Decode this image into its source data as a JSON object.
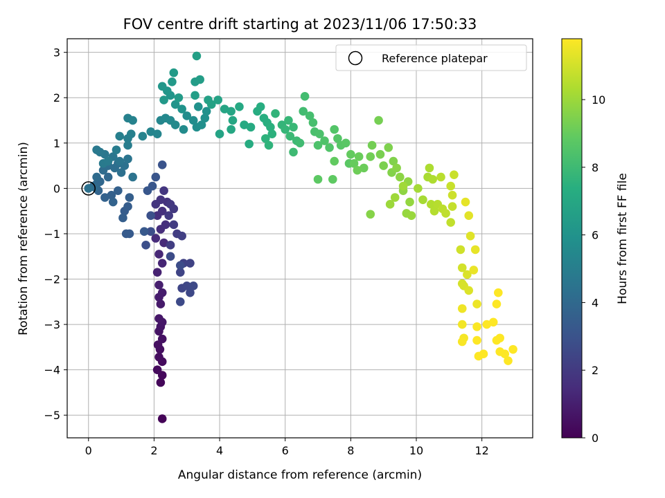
{
  "chart_data": {
    "type": "scatter",
    "title": "FOV centre drift starting at 2023/11/06 17:50:33",
    "xlabel": "Angular distance from reference (arcmin)",
    "ylabel": "Rotation from reference (arcmin)",
    "xlim": [
      -0.65,
      13.55
    ],
    "ylim": [
      -5.5,
      3.3
    ],
    "xticks": [
      0,
      2,
      4,
      6,
      8,
      10,
      12
    ],
    "yticks": [
      3,
      2,
      1,
      0,
      -1,
      -2,
      -3,
      -4,
      -5
    ],
    "xtick_labels": [
      "0",
      "2",
      "4",
      "6",
      "8",
      "10",
      "12"
    ],
    "ytick_labels": [
      "3",
      "2",
      "1",
      "0",
      "−1",
      "−2",
      "−3",
      "−4",
      "−5"
    ],
    "grid": true,
    "legend": {
      "position": "top-right",
      "entries": [
        "Reference platepar"
      ]
    },
    "reference_point": {
      "x": 0,
      "y": 0
    },
    "colorbar": {
      "label": "Hours from first FF file",
      "colormap": "viridis",
      "range": [
        0,
        11.8
      ],
      "ticks": [
        0,
        2,
        4,
        6,
        8,
        10
      ],
      "tick_labels": [
        "0",
        "2",
        "4",
        "6",
        "8",
        "10"
      ]
    },
    "series": [
      {
        "points": [
          [
            2.25,
            -5.08,
            0.1
          ],
          [
            2.2,
            -4.28,
            0.2
          ],
          [
            2.25,
            -4.12,
            0.25
          ],
          [
            2.1,
            -4.0,
            0.3
          ],
          [
            2.25,
            -3.82,
            0.35
          ],
          [
            2.15,
            -3.72,
            0.4
          ],
          [
            2.18,
            -3.55,
            0.45
          ],
          [
            2.12,
            -3.45,
            0.5
          ],
          [
            2.25,
            -3.32,
            0.55
          ],
          [
            2.15,
            -3.15,
            0.6
          ],
          [
            2.2,
            -3.05,
            0.65
          ],
          [
            2.25,
            -2.95,
            0.7
          ],
          [
            2.15,
            -2.87,
            0.75
          ],
          [
            2.2,
            -2.55,
            0.85
          ],
          [
            2.15,
            -2.4,
            0.9
          ],
          [
            2.25,
            -2.3,
            0.95
          ],
          [
            2.15,
            -2.13,
            1.0
          ],
          [
            2.1,
            -1.85,
            1.1
          ],
          [
            2.25,
            -1.65,
            1.2
          ],
          [
            2.15,
            -1.45,
            1.3
          ],
          [
            2.3,
            -1.2,
            1.4
          ],
          [
            2.05,
            -1.1,
            1.45
          ],
          [
            2.2,
            -0.9,
            1.5
          ],
          [
            2.35,
            -0.8,
            1.55
          ],
          [
            2.1,
            -0.6,
            1.6
          ],
          [
            2.25,
            -0.5,
            1.65
          ],
          [
            2.4,
            -0.3,
            1.7
          ],
          [
            2.2,
            -0.25,
            1.75
          ],
          [
            2.05,
            -0.35,
            1.8
          ],
          [
            2.3,
            -0.05,
            1.85
          ],
          [
            2.5,
            -0.35,
            1.9
          ],
          [
            2.6,
            -0.45,
            1.95
          ],
          [
            2.45,
            -0.6,
            2.0
          ],
          [
            2.6,
            -0.8,
            2.05
          ],
          [
            2.7,
            -1.0,
            2.1
          ],
          [
            2.5,
            -1.25,
            2.15
          ],
          [
            2.85,
            -1.05,
            2.2
          ],
          [
            2.9,
            -1.65,
            2.3
          ],
          [
            3.1,
            -1.65,
            2.35
          ],
          [
            2.8,
            -1.85,
            2.4
          ],
          [
            2.85,
            -2.2,
            2.45
          ],
          [
            3.0,
            -2.15,
            2.5
          ],
          [
            3.1,
            -2.3,
            2.55
          ],
          [
            3.2,
            -2.15,
            2.6
          ],
          [
            2.8,
            -2.5,
            2.65
          ],
          [
            2.5,
            -1.5,
            2.7
          ],
          [
            2.8,
            -1.7,
            2.75
          ],
          [
            1.9,
            -0.95,
            2.8
          ],
          [
            1.75,
            -1.25,
            2.85
          ],
          [
            1.9,
            -0.6,
            2.9
          ],
          [
            2.25,
            0.52,
            3.0
          ],
          [
            2.05,
            0.25,
            3.1
          ],
          [
            1.95,
            0.05,
            3.15
          ],
          [
            1.8,
            -0.05,
            3.2
          ],
          [
            1.7,
            -0.95,
            3.25
          ],
          [
            1.25,
            -1.0,
            3.3
          ],
          [
            1.15,
            -1.0,
            3.35
          ],
          [
            1.1,
            -0.5,
            3.4
          ],
          [
            1.2,
            -0.4,
            3.45
          ],
          [
            1.05,
            -0.65,
            3.5
          ],
          [
            1.25,
            -0.2,
            3.55
          ],
          [
            0.9,
            -0.05,
            3.6
          ],
          [
            0.7,
            -0.15,
            3.65
          ],
          [
            0.5,
            -0.2,
            3.7
          ],
          [
            0.75,
            -0.3,
            3.75
          ],
          [
            0.3,
            -0.05,
            3.8
          ],
          [
            0.25,
            0.1,
            3.85
          ],
          [
            0.35,
            0.15,
            3.9
          ],
          [
            0.6,
            0.25,
            3.95
          ],
          [
            0.2,
            0.02,
            4.0
          ],
          [
            0.15,
            0.05,
            4.05
          ],
          [
            0.25,
            0.25,
            4.1
          ],
          [
            0.45,
            0.4,
            4.15
          ],
          [
            0.6,
            0.5,
            4.2
          ],
          [
            0.8,
            0.45,
            4.25
          ],
          [
            0.9,
            0.55,
            4.3
          ],
          [
            1.0,
            0.35,
            4.35
          ],
          [
            1.1,
            0.5,
            4.4
          ],
          [
            1.35,
            0.25,
            4.45
          ],
          [
            1.2,
            0.65,
            4.5
          ],
          [
            0.95,
            0.6,
            4.55
          ],
          [
            0.75,
            0.7,
            4.6
          ],
          [
            0.5,
            0.75,
            4.65
          ],
          [
            0.35,
            0.8,
            4.7
          ],
          [
            0.25,
            0.85,
            4.75
          ],
          [
            0.45,
            0.55,
            4.8
          ],
          [
            0.6,
            0.6,
            4.85
          ],
          [
            0.85,
            0.85,
            4.9
          ],
          [
            1.2,
            0.95,
            4.95
          ],
          [
            1.2,
            1.1,
            5.0
          ],
          [
            0.95,
            1.15,
            5.05
          ],
          [
            1.3,
            1.2,
            5.1
          ],
          [
            1.2,
            1.55,
            5.15
          ],
          [
            1.35,
            1.5,
            5.2
          ],
          [
            1.65,
            1.15,
            5.25
          ],
          [
            1.9,
            1.25,
            5.3
          ],
          [
            2.1,
            1.2,
            5.35
          ],
          [
            2.2,
            1.5,
            5.4
          ],
          [
            2.35,
            1.55,
            5.45
          ],
          [
            2.5,
            1.5,
            5.5
          ],
          [
            2.65,
            1.4,
            5.55
          ],
          [
            2.9,
            1.3,
            5.6
          ],
          [
            3.0,
            1.6,
            5.65
          ],
          [
            3.2,
            1.5,
            5.7
          ],
          [
            3.3,
            1.35,
            5.75
          ],
          [
            3.45,
            1.4,
            5.8
          ],
          [
            3.55,
            1.55,
            5.85
          ],
          [
            3.6,
            1.7,
            5.9
          ],
          [
            3.35,
            1.8,
            5.95
          ],
          [
            2.85,
            1.75,
            6.0
          ],
          [
            2.65,
            1.85,
            6.05
          ],
          [
            2.5,
            2.05,
            6.1
          ],
          [
            2.4,
            2.15,
            6.15
          ],
          [
            2.25,
            2.25,
            6.2
          ],
          [
            2.3,
            1.95,
            6.25
          ],
          [
            2.55,
            2.35,
            6.3
          ],
          [
            2.6,
            2.55,
            6.35
          ],
          [
            2.75,
            2.0,
            6.4
          ],
          [
            3.25,
            2.35,
            6.45
          ],
          [
            3.4,
            2.4,
            6.5
          ],
          [
            3.25,
            2.05,
            6.55
          ],
          [
            3.3,
            2.92,
            6.6
          ],
          [
            3.65,
            1.95,
            6.65
          ],
          [
            3.75,
            1.85,
            6.7
          ],
          [
            3.95,
            1.95,
            6.75
          ],
          [
            4.0,
            1.2,
            6.8
          ],
          [
            4.15,
            1.75,
            6.85
          ],
          [
            4.35,
            1.7,
            6.9
          ],
          [
            4.4,
            1.5,
            6.95
          ],
          [
            4.35,
            1.3,
            7.0
          ],
          [
            4.6,
            1.8,
            7.05
          ],
          [
            4.75,
            1.4,
            7.1
          ],
          [
            4.95,
            1.35,
            7.15
          ],
          [
            4.9,
            0.98,
            7.2
          ],
          [
            5.15,
            1.7,
            7.25
          ],
          [
            5.25,
            1.8,
            7.3
          ],
          [
            5.35,
            1.55,
            7.35
          ],
          [
            5.45,
            1.45,
            7.4
          ],
          [
            5.55,
            1.35,
            7.45
          ],
          [
            5.6,
            1.2,
            7.5
          ],
          [
            5.4,
            1.1,
            7.55
          ],
          [
            5.5,
            0.95,
            7.6
          ],
          [
            5.7,
            1.65,
            7.65
          ],
          [
            5.9,
            1.4,
            7.7
          ],
          [
            6.0,
            1.3,
            7.75
          ],
          [
            6.1,
            1.5,
            7.8
          ],
          [
            6.25,
            1.35,
            7.85
          ],
          [
            6.15,
            1.15,
            7.9
          ],
          [
            6.35,
            1.05,
            7.95
          ],
          [
            6.25,
            0.8,
            8.0
          ],
          [
            6.45,
            1.0,
            8.05
          ],
          [
            6.55,
            1.7,
            8.1
          ],
          [
            6.6,
            2.03,
            8.15
          ],
          [
            6.75,
            1.6,
            8.2
          ],
          [
            6.85,
            1.45,
            8.25
          ],
          [
            6.9,
            1.25,
            8.3
          ],
          [
            7.05,
            1.2,
            8.35
          ],
          [
            7.0,
            0.95,
            8.4
          ],
          [
            7.2,
            1.05,
            8.45
          ],
          [
            7.35,
            0.9,
            8.5
          ],
          [
            7.5,
            1.3,
            8.55
          ],
          [
            7.6,
            1.1,
            8.6
          ],
          [
            7.7,
            0.95,
            8.65
          ],
          [
            7.85,
            1.0,
            8.7
          ],
          [
            7.95,
            0.55,
            8.75
          ],
          [
            7.0,
            0.2,
            8.8
          ],
          [
            7.45,
            0.2,
            8.85
          ],
          [
            7.5,
            0.6,
            8.9
          ],
          [
            8.0,
            0.75,
            8.95
          ],
          [
            8.1,
            0.55,
            9.0
          ],
          [
            8.25,
            0.7,
            9.05
          ],
          [
            8.4,
            0.45,
            9.1
          ],
          [
            8.2,
            0.4,
            9.15
          ],
          [
            8.6,
            0.7,
            9.2
          ],
          [
            8.65,
            0.95,
            9.25
          ],
          [
            8.85,
            1.5,
            9.3
          ],
          [
            8.9,
            0.75,
            9.35
          ],
          [
            9.0,
            0.5,
            9.4
          ],
          [
            9.15,
            0.9,
            9.45
          ],
          [
            9.3,
            0.6,
            9.5
          ],
          [
            9.25,
            0.35,
            9.55
          ],
          [
            8.6,
            -0.57,
            9.6
          ],
          [
            9.4,
            0.45,
            9.65
          ],
          [
            9.5,
            0.25,
            9.7
          ],
          [
            9.6,
            -0.05,
            9.75
          ],
          [
            9.75,
            0.15,
            9.8
          ],
          [
            9.8,
            -0.3,
            9.85
          ],
          [
            9.7,
            -0.55,
            9.9
          ],
          [
            9.85,
            -0.6,
            9.95
          ],
          [
            9.2,
            -0.35,
            10.0
          ],
          [
            9.35,
            -0.2,
            10.05
          ],
          [
            9.6,
            0.05,
            10.1
          ],
          [
            10.05,
            0.0,
            10.15
          ],
          [
            10.2,
            -0.25,
            10.2
          ],
          [
            10.35,
            0.25,
            10.25
          ],
          [
            10.4,
            0.45,
            10.3
          ],
          [
            10.5,
            0.2,
            10.35
          ],
          [
            10.45,
            -0.35,
            10.4
          ],
          [
            10.55,
            -0.5,
            10.45
          ],
          [
            10.65,
            -0.35,
            10.5
          ],
          [
            10.75,
            0.25,
            10.55
          ],
          [
            10.8,
            -0.45,
            10.6
          ],
          [
            10.9,
            -0.55,
            10.65
          ],
          [
            11.05,
            -0.75,
            10.7
          ],
          [
            11.1,
            -0.4,
            10.75
          ],
          [
            11.05,
            0.05,
            10.8
          ],
          [
            11.15,
            0.3,
            10.85
          ],
          [
            11.1,
            -0.15,
            10.9
          ],
          [
            11.35,
            -1.35,
            10.95
          ],
          [
            11.4,
            -1.75,
            11.0
          ],
          [
            11.4,
            -2.1,
            11.05
          ],
          [
            11.45,
            -2.15,
            11.1
          ],
          [
            11.55,
            -1.9,
            11.15
          ],
          [
            11.6,
            -2.25,
            11.2
          ],
          [
            11.65,
            -1.05,
            11.25
          ],
          [
            11.6,
            -0.6,
            11.3
          ],
          [
            11.5,
            -0.3,
            11.35
          ],
          [
            11.8,
            -1.35,
            11.4
          ],
          [
            11.75,
            -1.8,
            11.45
          ],
          [
            11.85,
            -2.55,
            11.5
          ],
          [
            11.4,
            -2.65,
            11.55
          ],
          [
            11.4,
            -3.0,
            11.6
          ],
          [
            11.45,
            -3.3,
            11.65
          ],
          [
            11.4,
            -3.38,
            11.7
          ],
          [
            11.85,
            -3.05,
            11.75
          ],
          [
            12.15,
            -3.0,
            11.8
          ],
          [
            12.35,
            -2.95,
            11.85
          ],
          [
            11.85,
            -3.35,
            11.9
          ],
          [
            11.9,
            -3.7,
            11.95
          ],
          [
            12.05,
            -3.65,
            12.0
          ],
          [
            12.45,
            -2.55,
            12.05
          ],
          [
            12.5,
            -2.3,
            12.1
          ],
          [
            12.45,
            -3.35,
            12.15
          ],
          [
            12.55,
            -3.3,
            12.2
          ],
          [
            12.55,
            -3.6,
            12.25
          ],
          [
            12.7,
            -3.65,
            12.3
          ],
          [
            12.8,
            -3.8,
            12.35
          ],
          [
            12.95,
            -3.55,
            12.4
          ]
        ]
      }
    ]
  }
}
